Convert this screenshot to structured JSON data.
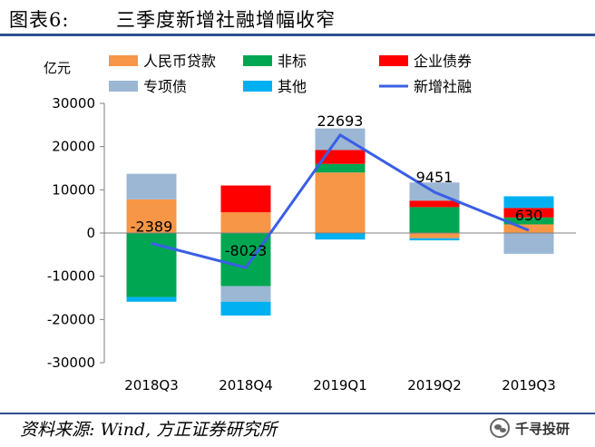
{
  "header": {
    "figure_label": "图表6:",
    "title": "三季度新增社融增幅收窄"
  },
  "footer": {
    "source": "资料来源: Wind, 方正证券研究所",
    "watermark": "千寻投研"
  },
  "colors": {
    "rmb_loans": "#f79646",
    "non_standard": "#00a651",
    "corporate_bonds": "#ff0000",
    "special_bonds": "#9bb7d4",
    "others": "#00b0f0",
    "new_tsf": "#3a5fe5"
  },
  "chart_data": {
    "type": "bar",
    "stacked": true,
    "categories": [
      "2018Q3",
      "2018Q4",
      "2019Q1",
      "2019Q2",
      "2019Q3"
    ],
    "ylabel": "亿元",
    "ylim": [
      -30000,
      30000
    ],
    "yticks": [
      -30000,
      -20000,
      -10000,
      0,
      10000,
      20000,
      30000
    ],
    "grid": false,
    "legend_position": "top",
    "series": [
      {
        "name": "人民币贷款",
        "key": "rmb_loans",
        "values": [
          7800,
          4800,
          14000,
          -1200,
          2000
        ]
      },
      {
        "name": "非标",
        "key": "non_standard",
        "values": [
          -14800,
          -12300,
          2000,
          6000,
          1600
        ]
      },
      {
        "name": "企业债券",
        "key": "corporate_bonds",
        "values": [
          0,
          6200,
          3200,
          1500,
          2200
        ]
      },
      {
        "name": "专项债",
        "key": "special_bonds",
        "values": [
          5900,
          -3600,
          5000,
          4200,
          -4800
        ]
      },
      {
        "name": "其他",
        "key": "others",
        "values": [
          -1100,
          -3200,
          -1500,
          -500,
          2700
        ]
      }
    ],
    "line": {
      "name": "新增社融",
      "key": "new_tsf",
      "values": [
        -2389,
        -8023,
        22693,
        9451,
        630
      ]
    },
    "data_labels": [
      "-2389",
      "-8023",
      "22693",
      "9451",
      "630"
    ]
  }
}
